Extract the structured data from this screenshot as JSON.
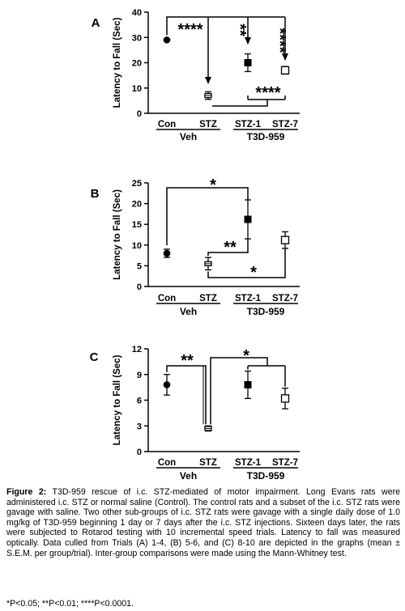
{
  "chart_data": [
    {
      "type": "scatter",
      "panel": "A",
      "ylabel": "Latency to Fall (Sec)",
      "ylim": [
        0,
        40
      ],
      "yticks": [
        0,
        10,
        20,
        30,
        40
      ],
      "categories": [
        "Con",
        "STZ",
        "STZ-1",
        "STZ-7"
      ],
      "group_labels": [
        "Veh",
        "T3D-959"
      ],
      "means": [
        29,
        7,
        20,
        17
      ],
      "sem": [
        0.4,
        1.5,
        3.5,
        1.5
      ],
      "markers": [
        "filled-circle",
        "half-square",
        "filled-square",
        "open-square"
      ],
      "significance": [
        {
          "from": "Con",
          "to": "STZ",
          "label": "****"
        },
        {
          "from": "Con",
          "to": "STZ-1",
          "label": "**"
        },
        {
          "from": "Con",
          "to": "STZ-7",
          "label": "****"
        },
        {
          "from": "STZ",
          "to": "STZ-1, STZ-7",
          "label": "****"
        }
      ]
    },
    {
      "type": "scatter",
      "panel": "B",
      "ylabel": "Latency to Fall (Sec)",
      "ylim": [
        0,
        25
      ],
      "yticks": [
        0,
        5,
        10,
        15,
        20,
        25
      ],
      "categories": [
        "Con",
        "STZ",
        "STZ-1",
        "STZ-7"
      ],
      "group_labels": [
        "Veh",
        "T3D-959"
      ],
      "means": [
        8,
        5.5,
        16.2,
        11.2
      ],
      "sem": [
        1,
        1.5,
        4.7,
        2
      ],
      "markers": [
        "filled-circle",
        "half-square",
        "filled-square",
        "open-square"
      ],
      "significance": [
        {
          "from": "Con",
          "to": "STZ-1",
          "label": "*"
        },
        {
          "from": "STZ",
          "to": "STZ-1",
          "label": "**"
        },
        {
          "from": "STZ",
          "to": "STZ-7",
          "label": "*"
        }
      ]
    },
    {
      "type": "scatter",
      "panel": "C",
      "ylabel": "Latency to Fall (Sec)",
      "ylim": [
        0,
        12
      ],
      "yticks": [
        0,
        3,
        6,
        9,
        12
      ],
      "categories": [
        "Con",
        "STZ",
        "STZ-1",
        "STZ-7"
      ],
      "group_labels": [
        "Veh",
        "T3D-959"
      ],
      "means": [
        7.8,
        2.7,
        7.8,
        6.2
      ],
      "sem": [
        1.2,
        0.3,
        1.6,
        1.2
      ],
      "markers": [
        "filled-circle",
        "half-square",
        "filled-square",
        "open-square"
      ],
      "significance": [
        {
          "from": "Con",
          "to": "STZ",
          "label": "**"
        },
        {
          "from": "STZ",
          "to": "STZ-1, STZ-7",
          "label": "*"
        }
      ]
    }
  ],
  "caption": {
    "label": "Figure 2:",
    "text": " T3D-959 rescue of i.c. STZ-mediated of motor impairment. Long Evans rats were administered i.c. STZ or normal saline (Control). The control rats and a subset of the i.c. STZ rats were gavage with saline. Two other sub-groups of i.c. STZ rats were gavage with a single daily dose of 1.0 mg/kg of T3D-959 beginning 1 day or 7 days after the i.c. STZ injections. Sixteen days later, the rats were subjected to Rotarod testing with 10 incremental speed trials. Latency to fall was measured optically. Data culled from Trials (A) 1-4, (B) 5-6, and (C) 8-10 are depicted in the graphs (mean ± S.E.M. per group/trial). Inter-group comparisons were made using the Mann-Whitney test.",
    "note": "*P<0.05; **P<0.01; ****P<0.0001."
  }
}
